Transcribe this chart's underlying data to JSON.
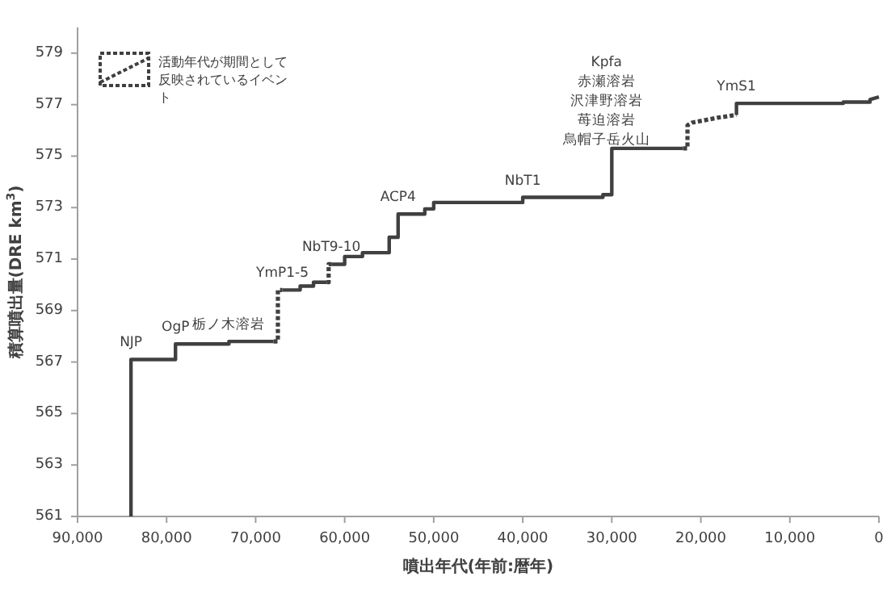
{
  "chart_data": {
    "type": "line",
    "xlabel": "噴出年代(年前:暦年)",
    "ylabel": "積算噴出量(DRE km$^{3}$)",
    "xlim": [
      90000,
      0
    ],
    "ylim": [
      561,
      580
    ],
    "xticks": [
      {
        "value": 90000,
        "label": "90,000"
      },
      {
        "value": 80000,
        "label": "80,000"
      },
      {
        "value": 70000,
        "label": "70,000"
      },
      {
        "value": 60000,
        "label": "60,000"
      },
      {
        "value": 50000,
        "label": "50,000"
      },
      {
        "value": 40000,
        "label": "40,000"
      },
      {
        "value": 30000,
        "label": "30,000"
      },
      {
        "value": 20000,
        "label": "20,000"
      },
      {
        "value": 10000,
        "label": "10,000"
      },
      0
    ],
    "yticks": [
      561,
      563,
      565,
      567,
      569,
      571,
      573,
      575,
      577,
      579
    ],
    "grid": false,
    "legend": "top left",
    "marker": "none",
    "series": [
      {
        "color": "#404040",
        "line_style": "solid",
        "x": [
          84000,
          84000,
          79000,
          79000,
          73000,
          73000,
          68000
        ],
        "values": [
          561,
          567.1,
          567.1,
          567.7,
          567.7,
          567.8,
          567.8
        ]
      },
      {
        "color": "#404040",
        "line_style": "solid",
        "x": [
          67000,
          65000,
          65000,
          63500,
          63500,
          62000
        ],
        "values": [
          569.8,
          569.8,
          569.95,
          569.95,
          570.1,
          570.1
        ]
      },
      {
        "color": "#404040",
        "line_style": "solid",
        "x": [
          61500,
          60000,
          60000,
          58000,
          58000,
          55000,
          55000,
          54000,
          54000,
          51000,
          51000,
          50000,
          50000,
          40000,
          40000,
          31000,
          31000,
          30000,
          30000,
          22000
        ],
        "values": [
          570.8,
          570.8,
          571.1,
          571.1,
          571.25,
          571.25,
          571.85,
          571.85,
          572.75,
          572.75,
          572.95,
          572.95,
          573.2,
          573.2,
          573.4,
          573.4,
          573.5,
          573.5,
          575.3,
          575.3
        ]
      },
      {
        "color": "#404040",
        "line_style": "solid",
        "x": [
          16000,
          16000,
          4000,
          4000,
          1000,
          1000,
          0
        ],
        "values": [
          576.6,
          577.05,
          577.05,
          577.1,
          577.1,
          577.2,
          577.3
        ]
      },
      {
        "name": "活動年代が期間として反映されているイベント",
        "color": "#404040",
        "line_style": "dotted",
        "x": [
          68000,
          67500,
          67500,
          67000
        ],
        "values": [
          567.8,
          567.8,
          569.8,
          569.8
        ]
      },
      {
        "color": "#404040",
        "line_style": "dotted",
        "x": [
          62000,
          61800,
          61800,
          61500
        ],
        "values": [
          570.1,
          570.1,
          570.8,
          570.8
        ]
      },
      {
        "color": "#404040",
        "line_style": "dotted",
        "x": [
          22000,
          21500,
          21500,
          21000,
          18000,
          16000
        ],
        "values": [
          575.3,
          575.3,
          576.2,
          576.3,
          576.5,
          576.6
        ]
      }
    ],
    "annotations": [
      {
        "text": "NJP",
        "x": 84000,
        "y": 567.1
      },
      {
        "text": "OgP",
        "x": 79000,
        "y": 567.7
      },
      {
        "text": "栃ノ木溶岩",
        "x": 73000,
        "y": 567.8
      },
      {
        "text": "YmP1-5",
        "x": 67000,
        "y": 569.8
      },
      {
        "text": "NbT9-10",
        "x": 61500,
        "y": 570.8
      },
      {
        "text": "ACP4",
        "x": 54000,
        "y": 572.75
      },
      {
        "text": "NbT1",
        "x": 40000,
        "y": 573.4
      },
      "Kpfa",
      "赤瀬溶岩",
      "沢津野溶岩",
      "苺迫溶岩",
      "烏帽子岳火山",
      {
        "text": "YmS1",
        "x": 16000,
        "y": 577.05
      }
    ]
  }
}
